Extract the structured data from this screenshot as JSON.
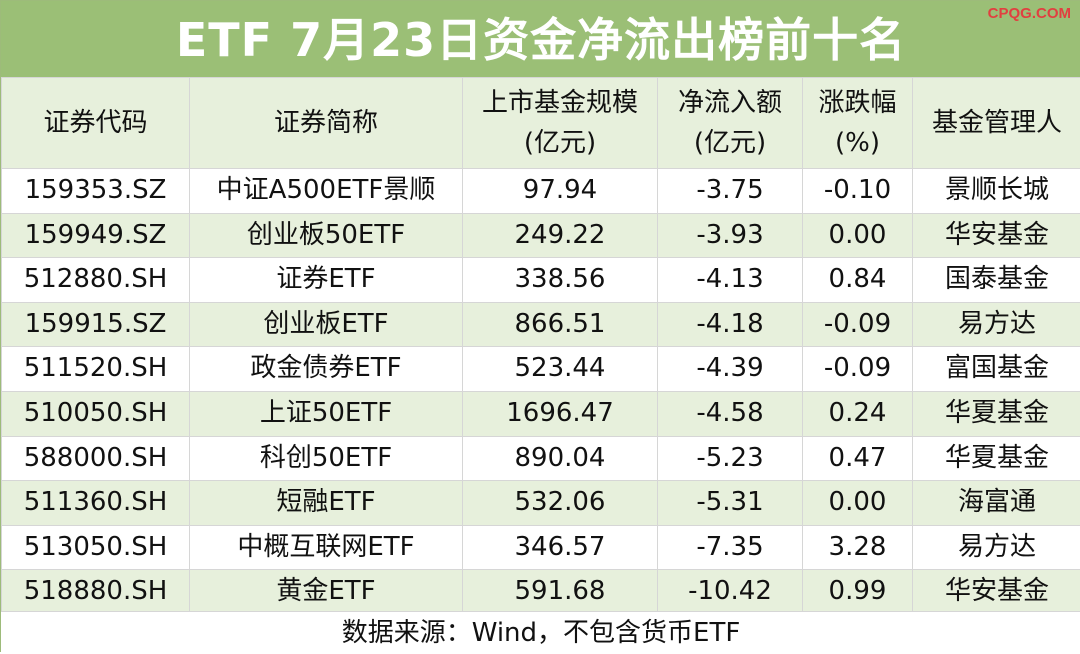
{
  "title": "ETF 7月23日资金净流出榜前十名",
  "watermark": "CPQG.COM",
  "headers": {
    "code": "证券代码",
    "name": "证券简称",
    "size_line1": "上市基金规模",
    "size_line2": "(亿元)",
    "flow_line1": "净流入额",
    "flow_line2": "(亿元)",
    "change_line1": "涨跌幅",
    "change_line2": "(%)",
    "manager": "基金管理人"
  },
  "rows": [
    {
      "code": "159353.SZ",
      "name": "中证A500ETF景顺",
      "size": "97.94",
      "flow": "-3.75",
      "change": "-0.10",
      "manager": "景顺长城"
    },
    {
      "code": "159949.SZ",
      "name": "创业板50ETF",
      "size": "249.22",
      "flow": "-3.93",
      "change": "0.00",
      "manager": "华安基金"
    },
    {
      "code": "512880.SH",
      "name": "证券ETF",
      "size": "338.56",
      "flow": "-4.13",
      "change": "0.84",
      "manager": "国泰基金"
    },
    {
      "code": "159915.SZ",
      "name": "创业板ETF",
      "size": "866.51",
      "flow": "-4.18",
      "change": "-0.09",
      "manager": "易方达"
    },
    {
      "code": "511520.SH",
      "name": "政金债券ETF",
      "size": "523.44",
      "flow": "-4.39",
      "change": "-0.09",
      "manager": "富国基金"
    },
    {
      "code": "510050.SH",
      "name": "上证50ETF",
      "size": "1696.47",
      "flow": "-4.58",
      "change": "0.24",
      "manager": "华夏基金"
    },
    {
      "code": "588000.SH",
      "name": "科创50ETF",
      "size": "890.04",
      "flow": "-5.23",
      "change": "0.47",
      "manager": "华夏基金"
    },
    {
      "code": "511360.SH",
      "name": "短融ETF",
      "size": "532.06",
      "flow": "-5.31",
      "change": "0.00",
      "manager": "海富通"
    },
    {
      "code": "513050.SH",
      "name": "中概互联网ETF",
      "size": "346.57",
      "flow": "-7.35",
      "change": "3.28",
      "manager": "易方达"
    },
    {
      "code": "518880.SH",
      "name": "黄金ETF",
      "size": "591.68",
      "flow": "-10.42",
      "change": "0.99",
      "manager": "华安基金"
    }
  ],
  "footer": "数据来源：Wind，不包含货币ETF",
  "colors": {
    "header_green": "#9bbf76",
    "row_green": "#e7f0dc",
    "watermark_red": "#e14040"
  }
}
